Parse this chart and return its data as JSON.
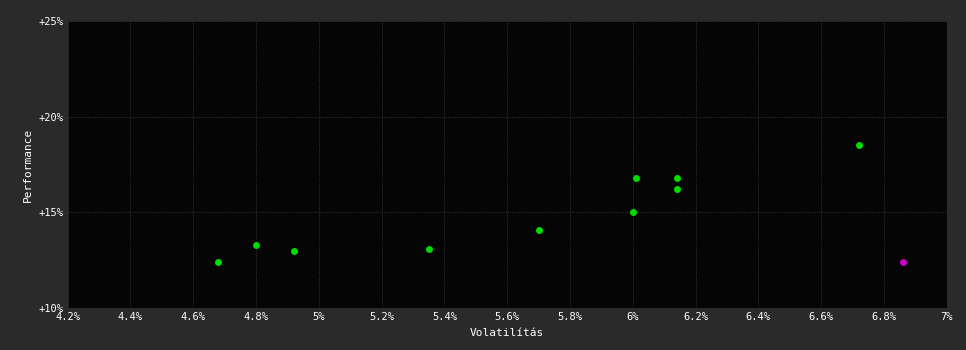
{
  "background_color": "#2a2a2a",
  "plot_bg_color": "#050505",
  "grid_color": "#404040",
  "text_color": "#ffffff",
  "xlabel": "Volatilítás",
  "ylabel": "Performance",
  "xlim": [
    0.042,
    0.07
  ],
  "ylim": [
    0.1,
    0.25
  ],
  "xticks": [
    0.042,
    0.044,
    0.046,
    0.048,
    0.05,
    0.052,
    0.054,
    0.056,
    0.058,
    0.06,
    0.062,
    0.064,
    0.066,
    0.068,
    0.07
  ],
  "yticks": [
    0.1,
    0.15,
    0.2,
    0.25
  ],
  "ytick_labels": [
    "+10%",
    "+15%",
    "+20%",
    "+25%"
  ],
  "xtick_labels": [
    "4.2%",
    "4.4%",
    "4.6%",
    "4.8%",
    "5%",
    "5.2%",
    "5.4%",
    "5.6%",
    "5.8%",
    "6%",
    "6.2%",
    "6.4%",
    "6.6%",
    "6.8%",
    "7%"
  ],
  "green_points": [
    [
      0.0468,
      0.124
    ],
    [
      0.048,
      0.133
    ],
    [
      0.0492,
      0.13
    ],
    [
      0.0535,
      0.131
    ],
    [
      0.057,
      0.141
    ],
    [
      0.06,
      0.15
    ],
    [
      0.0601,
      0.168
    ],
    [
      0.0614,
      0.168
    ],
    [
      0.0614,
      0.162
    ],
    [
      0.0672,
      0.185
    ]
  ],
  "magenta_points": [
    [
      0.0686,
      0.124
    ]
  ],
  "point_size": 25,
  "green_color": "#00dd00",
  "magenta_color": "#cc00cc",
  "font_size_ticks": 7.5,
  "font_size_labels": 8,
  "font_family": "monospace"
}
